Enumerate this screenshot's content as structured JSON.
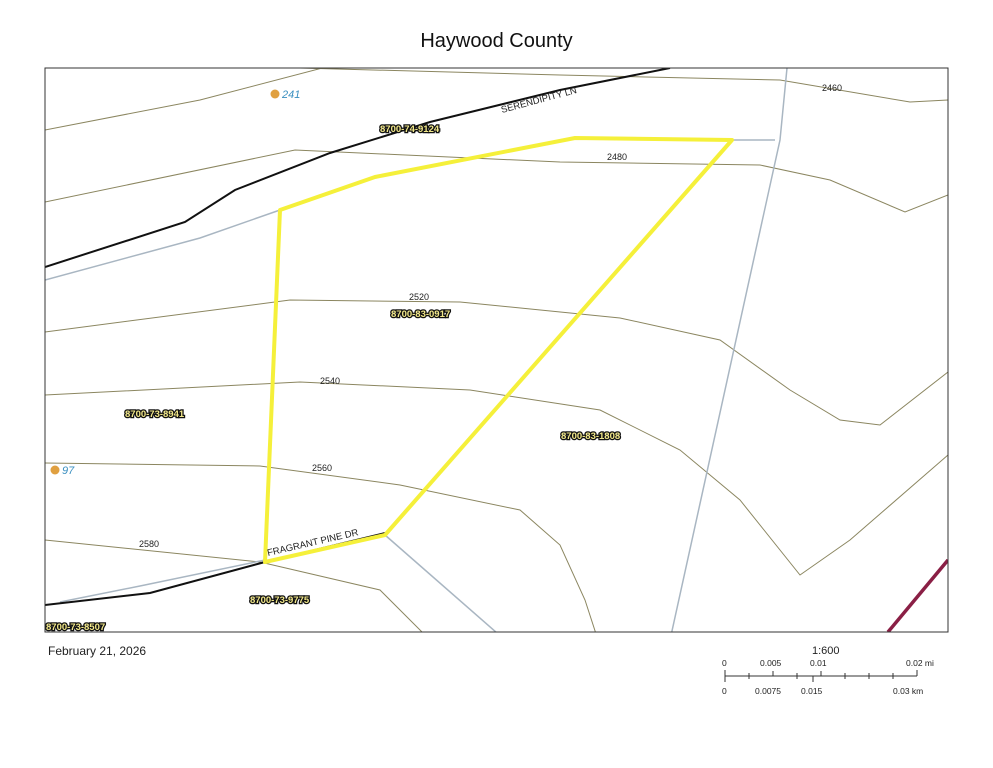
{
  "title": "Haywood County",
  "date": "February 21, 2026",
  "scale": {
    "ratio": "1:600",
    "mi_ticks": [
      "0",
      "0.005",
      "0.01",
      "0.02 mi"
    ],
    "km_ticks": [
      "0",
      "0.0075",
      "0.015",
      "0.03 km"
    ]
  },
  "contours": [
    "2460",
    "2480",
    "2520",
    "2540",
    "2560",
    "2580"
  ],
  "roads": [
    "SERENDIPITY LN",
    "FRAGRANT PINE DR"
  ],
  "parcels": [
    "8700-74-9124",
    "8700-83-0917",
    "8700-73-8941",
    "8700-83-1808",
    "8700-73-9775",
    "8700-73-8507"
  ],
  "addresses": [
    "241",
    "97"
  ],
  "colors": {
    "selected_parcel": "#f5f03a",
    "contour": "#8b8660",
    "road": "#111111",
    "parcel_line": "#a9b6c2",
    "boundary": "#8a1f45",
    "address_point": "#e0a040"
  }
}
